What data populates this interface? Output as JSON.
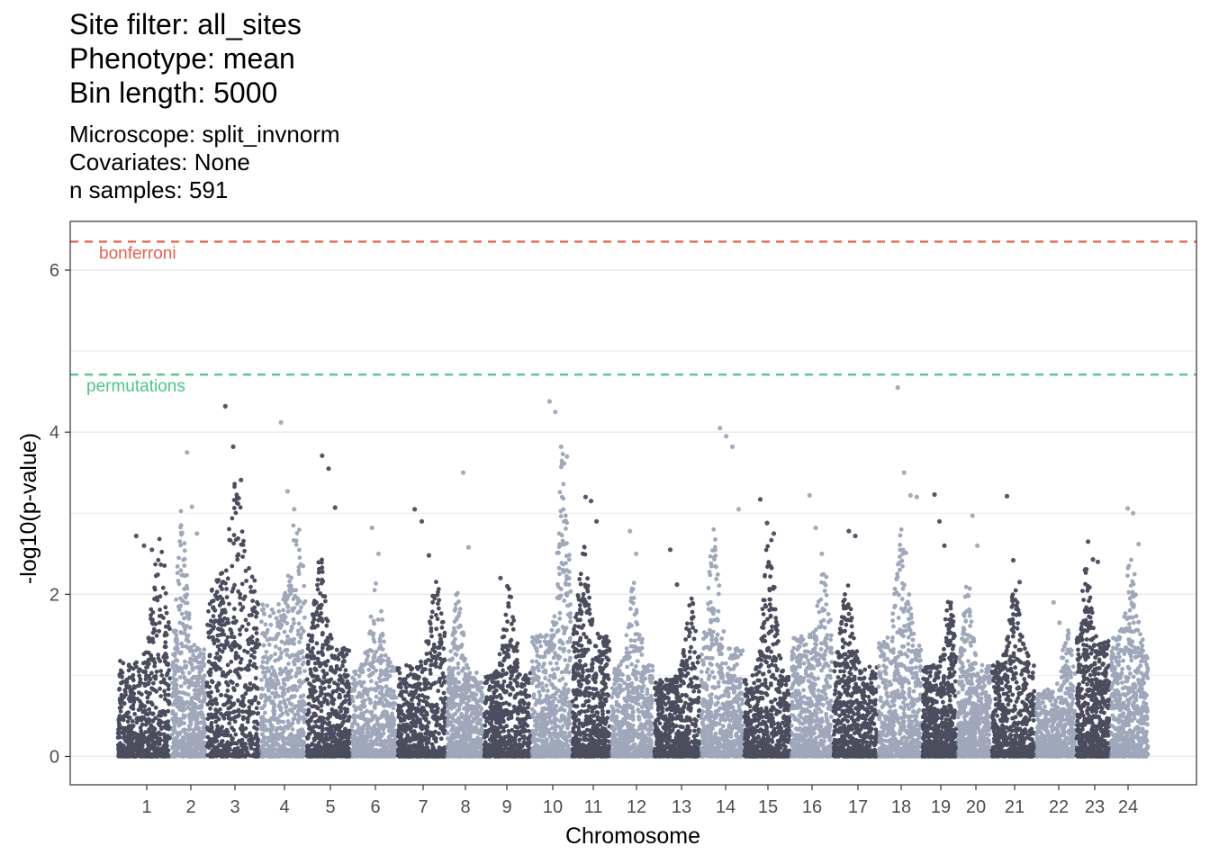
{
  "header": {
    "title_lines": [
      "Site filter: all_sites",
      "Phenotype: mean",
      "Bin length: 5000"
    ],
    "subtitle_lines": [
      "Microscope: split_invnorm",
      "Covariates: None",
      "n samples: 591"
    ]
  },
  "colors": {
    "dark_points": "#2b2d42",
    "light_points": "#8d99ae",
    "bonferroni": "#e8624e",
    "permutations": "#4cc48a",
    "panel_border": "#333333",
    "grid": "#ebebeb"
  },
  "chart_data": {
    "type": "scatter",
    "subtype": "manhattan",
    "xlabel": "Chromosome",
    "ylabel": "-log10(p-value)",
    "ylim": [
      -0.35,
      6.6
    ],
    "y_ticks": [
      0,
      2,
      4,
      6
    ],
    "grid": true,
    "legend": "none",
    "thresholds": [
      {
        "name": "bonferroni",
        "value": 6.35,
        "color": "#e8624e",
        "style": "dashed"
      },
      {
        "name": "permutations",
        "value": 4.71,
        "color": "#4cc48a",
        "style": "dashed"
      }
    ],
    "chromosomes": [
      {
        "label": "1",
        "color": "dark",
        "typical_max": 1.6,
        "peak": 2.7,
        "top_hits": [
          2.72,
          2.6,
          2.55
        ]
      },
      {
        "label": "2",
        "color": "light",
        "typical_max": 1.8,
        "peak": 3.1,
        "top_hits": [
          3.75,
          3.08,
          2.75
        ]
      },
      {
        "label": "3",
        "color": "dark",
        "typical_max": 2.9,
        "peak": 3.4,
        "top_hits": [
          4.32,
          3.82,
          3.41
        ]
      },
      {
        "label": "4",
        "color": "light",
        "typical_max": 2.5,
        "peak": 3.0,
        "top_hits": [
          4.12,
          3.27,
          3.05
        ]
      },
      {
        "label": "5",
        "color": "dark",
        "typical_max": 1.8,
        "peak": 2.5,
        "top_hits": [
          3.71,
          3.55,
          3.07
        ]
      },
      {
        "label": "6",
        "color": "light",
        "typical_max": 1.5,
        "peak": 2.2,
        "top_hits": [
          2.82,
          2.5
        ]
      },
      {
        "label": "7",
        "color": "dark",
        "typical_max": 1.5,
        "peak": 2.2,
        "top_hits": [
          3.05,
          2.9,
          2.48
        ]
      },
      {
        "label": "8",
        "color": "light",
        "typical_max": 1.4,
        "peak": 2.1,
        "top_hits": [
          3.5,
          2.58
        ]
      },
      {
        "label": "9",
        "color": "dark",
        "typical_max": 1.4,
        "peak": 2.1,
        "top_hits": [
          2.2,
          2.1
        ]
      },
      {
        "label": "10",
        "color": "light",
        "typical_max": 2.0,
        "peak": 3.8,
        "top_hits": [
          4.38,
          4.25,
          3.82,
          3.7
        ]
      },
      {
        "label": "11",
        "color": "dark",
        "typical_max": 2.0,
        "peak": 2.6,
        "top_hits": [
          3.2,
          3.15,
          2.9
        ]
      },
      {
        "label": "12",
        "color": "light",
        "typical_max": 1.5,
        "peak": 2.2,
        "top_hits": [
          2.78,
          2.5
        ]
      },
      {
        "label": "13",
        "color": "dark",
        "typical_max": 1.3,
        "peak": 2.0,
        "top_hits": [
          2.55,
          2.12
        ]
      },
      {
        "label": "14",
        "color": "light",
        "typical_max": 1.8,
        "peak": 2.8,
        "top_hits": [
          4.05,
          3.95,
          3.82,
          3.05
        ]
      },
      {
        "label": "15",
        "color": "dark",
        "typical_max": 1.3,
        "peak": 2.8,
        "top_hits": [
          3.17,
          2.88,
          2.75
        ]
      },
      {
        "label": "16",
        "color": "light",
        "typical_max": 2.0,
        "peak": 2.5,
        "top_hits": [
          3.22,
          2.82,
          2.5
        ]
      },
      {
        "label": "17",
        "color": "dark",
        "typical_max": 1.5,
        "peak": 2.2,
        "top_hits": [
          2.78,
          2.72
        ]
      },
      {
        "label": "18",
        "color": "light",
        "typical_max": 1.9,
        "peak": 3.0,
        "top_hits": [
          4.55,
          3.5,
          3.22,
          3.2
        ]
      },
      {
        "label": "19",
        "color": "dark",
        "typical_max": 1.5,
        "peak": 2.0,
        "top_hits": [
          3.23,
          2.9,
          2.6
        ]
      },
      {
        "label": "20",
        "color": "light",
        "typical_max": 1.5,
        "peak": 2.2,
        "top_hits": [
          2.97,
          2.6
        ]
      },
      {
        "label": "21",
        "color": "dark",
        "typical_max": 1.6,
        "peak": 2.2,
        "top_hits": [
          3.21,
          2.42,
          2.15
        ]
      },
      {
        "label": "22",
        "color": "light",
        "typical_max": 1.1,
        "peak": 1.6,
        "top_hits": [
          1.9,
          1.65
        ]
      },
      {
        "label": "23",
        "color": "dark",
        "typical_max": 1.9,
        "peak": 2.4,
        "top_hits": [
          2.65,
          2.43,
          2.4
        ]
      },
      {
        "label": "24",
        "color": "light",
        "typical_max": 2.0,
        "peak": 2.6,
        "top_hits": [
          3.06,
          3.0,
          2.62
        ]
      }
    ]
  }
}
